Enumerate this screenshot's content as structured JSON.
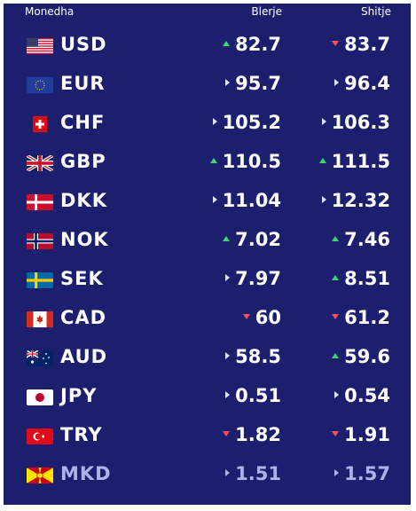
{
  "header": {
    "currency": "Monedha",
    "buy": "Blerje",
    "sell": "Shitje"
  },
  "colors": {
    "panel_bg": "#1c1f6e",
    "up": "#3fd46e",
    "down": "#ff4d5e"
  },
  "rows": [
    {
      "code": "USD",
      "flag": "us-flag-icon",
      "buy": "82.7",
      "buy_trend": "up",
      "sell": "83.7",
      "sell_trend": "down"
    },
    {
      "code": "EUR",
      "flag": "eu-flag-icon",
      "buy": "95.7",
      "buy_trend": "same",
      "sell": "96.4",
      "sell_trend": "same"
    },
    {
      "code": "CHF",
      "flag": "ch-flag-icon",
      "buy": "105.2",
      "buy_trend": "same",
      "sell": "106.3",
      "sell_trend": "same"
    },
    {
      "code": "GBP",
      "flag": "gb-flag-icon",
      "buy": "110.5",
      "buy_trend": "up",
      "sell": "111.5",
      "sell_trend": "up"
    },
    {
      "code": "DKK",
      "flag": "dk-flag-icon",
      "buy": "11.04",
      "buy_trend": "same",
      "sell": "12.32",
      "sell_trend": "same"
    },
    {
      "code": "NOK",
      "flag": "no-flag-icon",
      "buy": "7.02",
      "buy_trend": "up",
      "sell": "7.46",
      "sell_trend": "up"
    },
    {
      "code": "SEK",
      "flag": "se-flag-icon",
      "buy": "7.97",
      "buy_trend": "same",
      "sell": "8.51",
      "sell_trend": "up"
    },
    {
      "code": "CAD",
      "flag": "ca-flag-icon",
      "buy": "60",
      "buy_trend": "down",
      "sell": "61.2",
      "sell_trend": "down"
    },
    {
      "code": "AUD",
      "flag": "au-flag-icon",
      "buy": "58.5",
      "buy_trend": "same",
      "sell": "59.6",
      "sell_trend": "up"
    },
    {
      "code": "JPY",
      "flag": "jp-flag-icon",
      "buy": "0.51",
      "buy_trend": "same",
      "sell": "0.54",
      "sell_trend": "same"
    },
    {
      "code": "TRY",
      "flag": "tr-flag-icon",
      "buy": "1.82",
      "buy_trend": "down",
      "sell": "1.91",
      "sell_trend": "down"
    },
    {
      "code": "MKD",
      "flag": "mk-flag-icon",
      "buy": "1.51",
      "buy_trend": "same",
      "sell": "1.57",
      "sell_trend": "same"
    }
  ]
}
